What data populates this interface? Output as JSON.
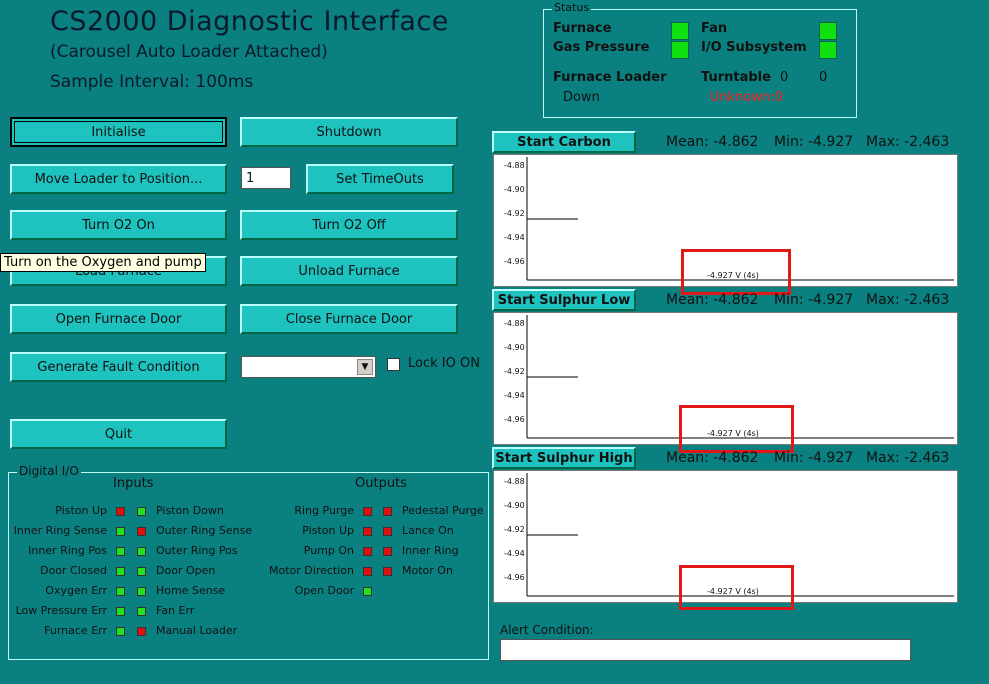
{
  "header": {
    "title": "CS2000 Diagnostic Interface",
    "subtitle": "(Carousel Auto Loader Attached)",
    "interval": "Sample Interval: 100ms"
  },
  "buttons": {
    "initialise": "Initialise",
    "shutdown": "Shutdown",
    "move_loader": "Move Loader to Position...",
    "set_timeouts": "Set TimeOuts",
    "turn_o2_on": "Turn O2 On",
    "turn_o2_off": "Turn O2 Off",
    "load_furnace": "Load Furnace",
    "unload_furnace": "Unload Furnace",
    "open_door": "Open Furnace Door",
    "close_door": "Close Furnace Door",
    "fault": "Generate Fault Condition",
    "quit": "Quit"
  },
  "position_input": {
    "value": "1"
  },
  "fault_select": {
    "value": ""
  },
  "lock_io": {
    "label": "Lock IO ON",
    "checked": false
  },
  "tooltip": "Turn on the Oxygen and pump",
  "status": {
    "legend": "Status",
    "furnace": "Furnace",
    "gas_pressure": "Gas Pressure",
    "fan": "Fan",
    "io_subsystem": "I/O Subsystem",
    "furnace_loader_label": "Furnace Loader",
    "furnace_loader_value": "Down",
    "turntable_label": "Turntable",
    "turntable_a": "0",
    "turntable_b": "0",
    "turntable_value": "Unknown:0",
    "colors": {
      "ok": "#10e010",
      "unknown": "#ff2020"
    }
  },
  "charts": [
    {
      "button": "Start Carbon",
      "mean": "Mean: -4.862",
      "min": "Min: -4.927",
      "max": "Max: -2.463",
      "yticks": [
        "-4.88",
        "-4.90",
        "-4.92",
        "-4.94",
        "-4.96"
      ],
      "readout": "-4.927 V (4s)"
    },
    {
      "button": "Start Sulphur Low",
      "mean": "Mean: -4.862",
      "min": "Min: -4.927",
      "max": "Max: -2.463",
      "yticks": [
        "-4.88",
        "-4.90",
        "-4.92",
        "-4.94",
        "-4.96"
      ],
      "readout": "-4.927 V (4s)"
    },
    {
      "button": "Start Sulphur High",
      "mean": "Mean: -4.862",
      "min": "Min: -4.927",
      "max": "Max: -2.463",
      "yticks": [
        "-4.88",
        "-4.90",
        "-4.92",
        "-4.94",
        "-4.96"
      ],
      "readout": "-4.927 V (4s)"
    }
  ],
  "alert": {
    "label": "Alert Condition:",
    "value": ""
  },
  "digital_io": {
    "legend": "Digital I/O",
    "inputs_header": "Inputs",
    "outputs_header": "Outputs",
    "inputs_left": [
      {
        "label": "Piston Up",
        "state": "red"
      },
      {
        "label": "Inner Ring Sense",
        "state": "green"
      },
      {
        "label": "Inner Ring Pos",
        "state": "green"
      },
      {
        "label": "Door Closed",
        "state": "green"
      },
      {
        "label": "Oxygen Err",
        "state": "green"
      },
      {
        "label": "Low Pressure Err",
        "state": "green"
      },
      {
        "label": "Furnace Err",
        "state": "green"
      }
    ],
    "inputs_right": [
      {
        "label": "Piston Down",
        "state": "green"
      },
      {
        "label": "Outer Ring Sense",
        "state": "red"
      },
      {
        "label": "Outer Ring Pos",
        "state": "green"
      },
      {
        "label": "Door Open",
        "state": "green"
      },
      {
        "label": "Home Sense",
        "state": "green"
      },
      {
        "label": "Fan Err",
        "state": "green"
      },
      {
        "label": "Manual Loader",
        "state": "red"
      }
    ],
    "outputs_left": [
      {
        "label": "Ring Purge",
        "state": "red"
      },
      {
        "label": "Piston Up",
        "state": "red"
      },
      {
        "label": "Pump On",
        "state": "red"
      },
      {
        "label": "Motor Direction",
        "state": "red"
      },
      {
        "label": "Open Door",
        "state": "green"
      }
    ],
    "outputs_right": [
      {
        "label": "Pedestal Purge",
        "state": "red"
      },
      {
        "label": "Lance On",
        "state": "red"
      },
      {
        "label": "Inner Ring",
        "state": "red"
      },
      {
        "label": "Motor On",
        "state": "red"
      }
    ],
    "colors": {
      "red": "#e01010",
      "green": "#20e020"
    }
  }
}
